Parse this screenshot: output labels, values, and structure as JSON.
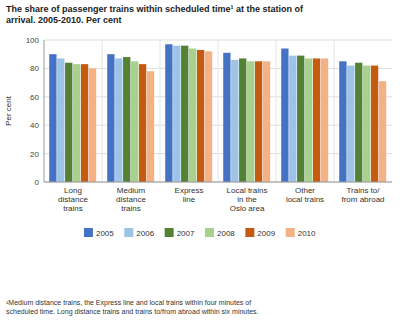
{
  "chart_data": {
    "type": "bar",
    "title": "The share of passenger trains within scheduled time¹ at the station of\narrival. 2005-2010. Per cent",
    "ylabel": "Per cent",
    "footnote": "¹Medium distance trains, the Express line and local trains within four minutes of\nscheduled time. Long distance trains and trains to/from abroad within six minutes.",
    "categories": [
      "Long\ndistance\ntrains",
      "Medium\ndistance\ntrains",
      "Express\nline",
      "Local trains\nin the\nOslo area",
      "Other\nlocal trains",
      "Trains to/\nfrom abroad"
    ],
    "series": [
      {
        "name": "2005",
        "color": "#4472C4",
        "values": [
          90,
          90,
          97,
          91,
          94,
          85
        ]
      },
      {
        "name": "2006",
        "color": "#9DC3E6",
        "values": [
          87,
          87,
          96,
          86,
          89,
          82
        ]
      },
      {
        "name": "2007",
        "color": "#548235",
        "values": [
          84,
          88,
          96,
          87,
          89,
          84
        ]
      },
      {
        "name": "2008",
        "color": "#A9D18E",
        "values": [
          83,
          85,
          94,
          85,
          87,
          82
        ]
      },
      {
        "name": "2009",
        "color": "#C55A11",
        "values": [
          83,
          83,
          93,
          85,
          87,
          82
        ]
      },
      {
        "name": "2010",
        "color": "#F4B183",
        "values": [
          80,
          78,
          92,
          85,
          87,
          71
        ]
      }
    ],
    "ylim": [
      0,
      100
    ],
    "yticks": [
      0,
      20,
      40,
      60,
      80,
      100
    ],
    "grid": true,
    "legend": "bottom"
  }
}
